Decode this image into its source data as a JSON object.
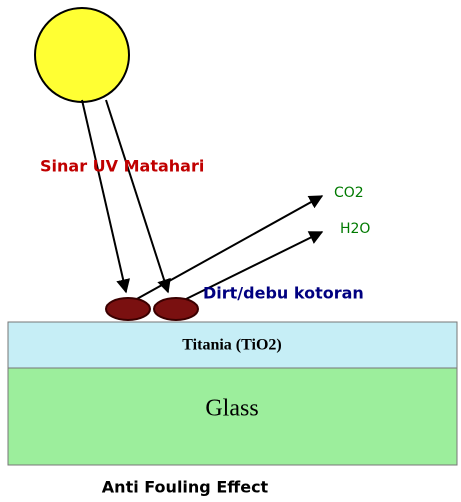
{
  "uv_label": "Sinar UV Matahari",
  "products": [
    "CO2",
    "H2O"
  ],
  "dirt_label": "Dirt/debu kotoran",
  "layers": [
    "Titania (TiO2)",
    "Glass"
  ],
  "caption": "Anti Fouling Effect"
}
